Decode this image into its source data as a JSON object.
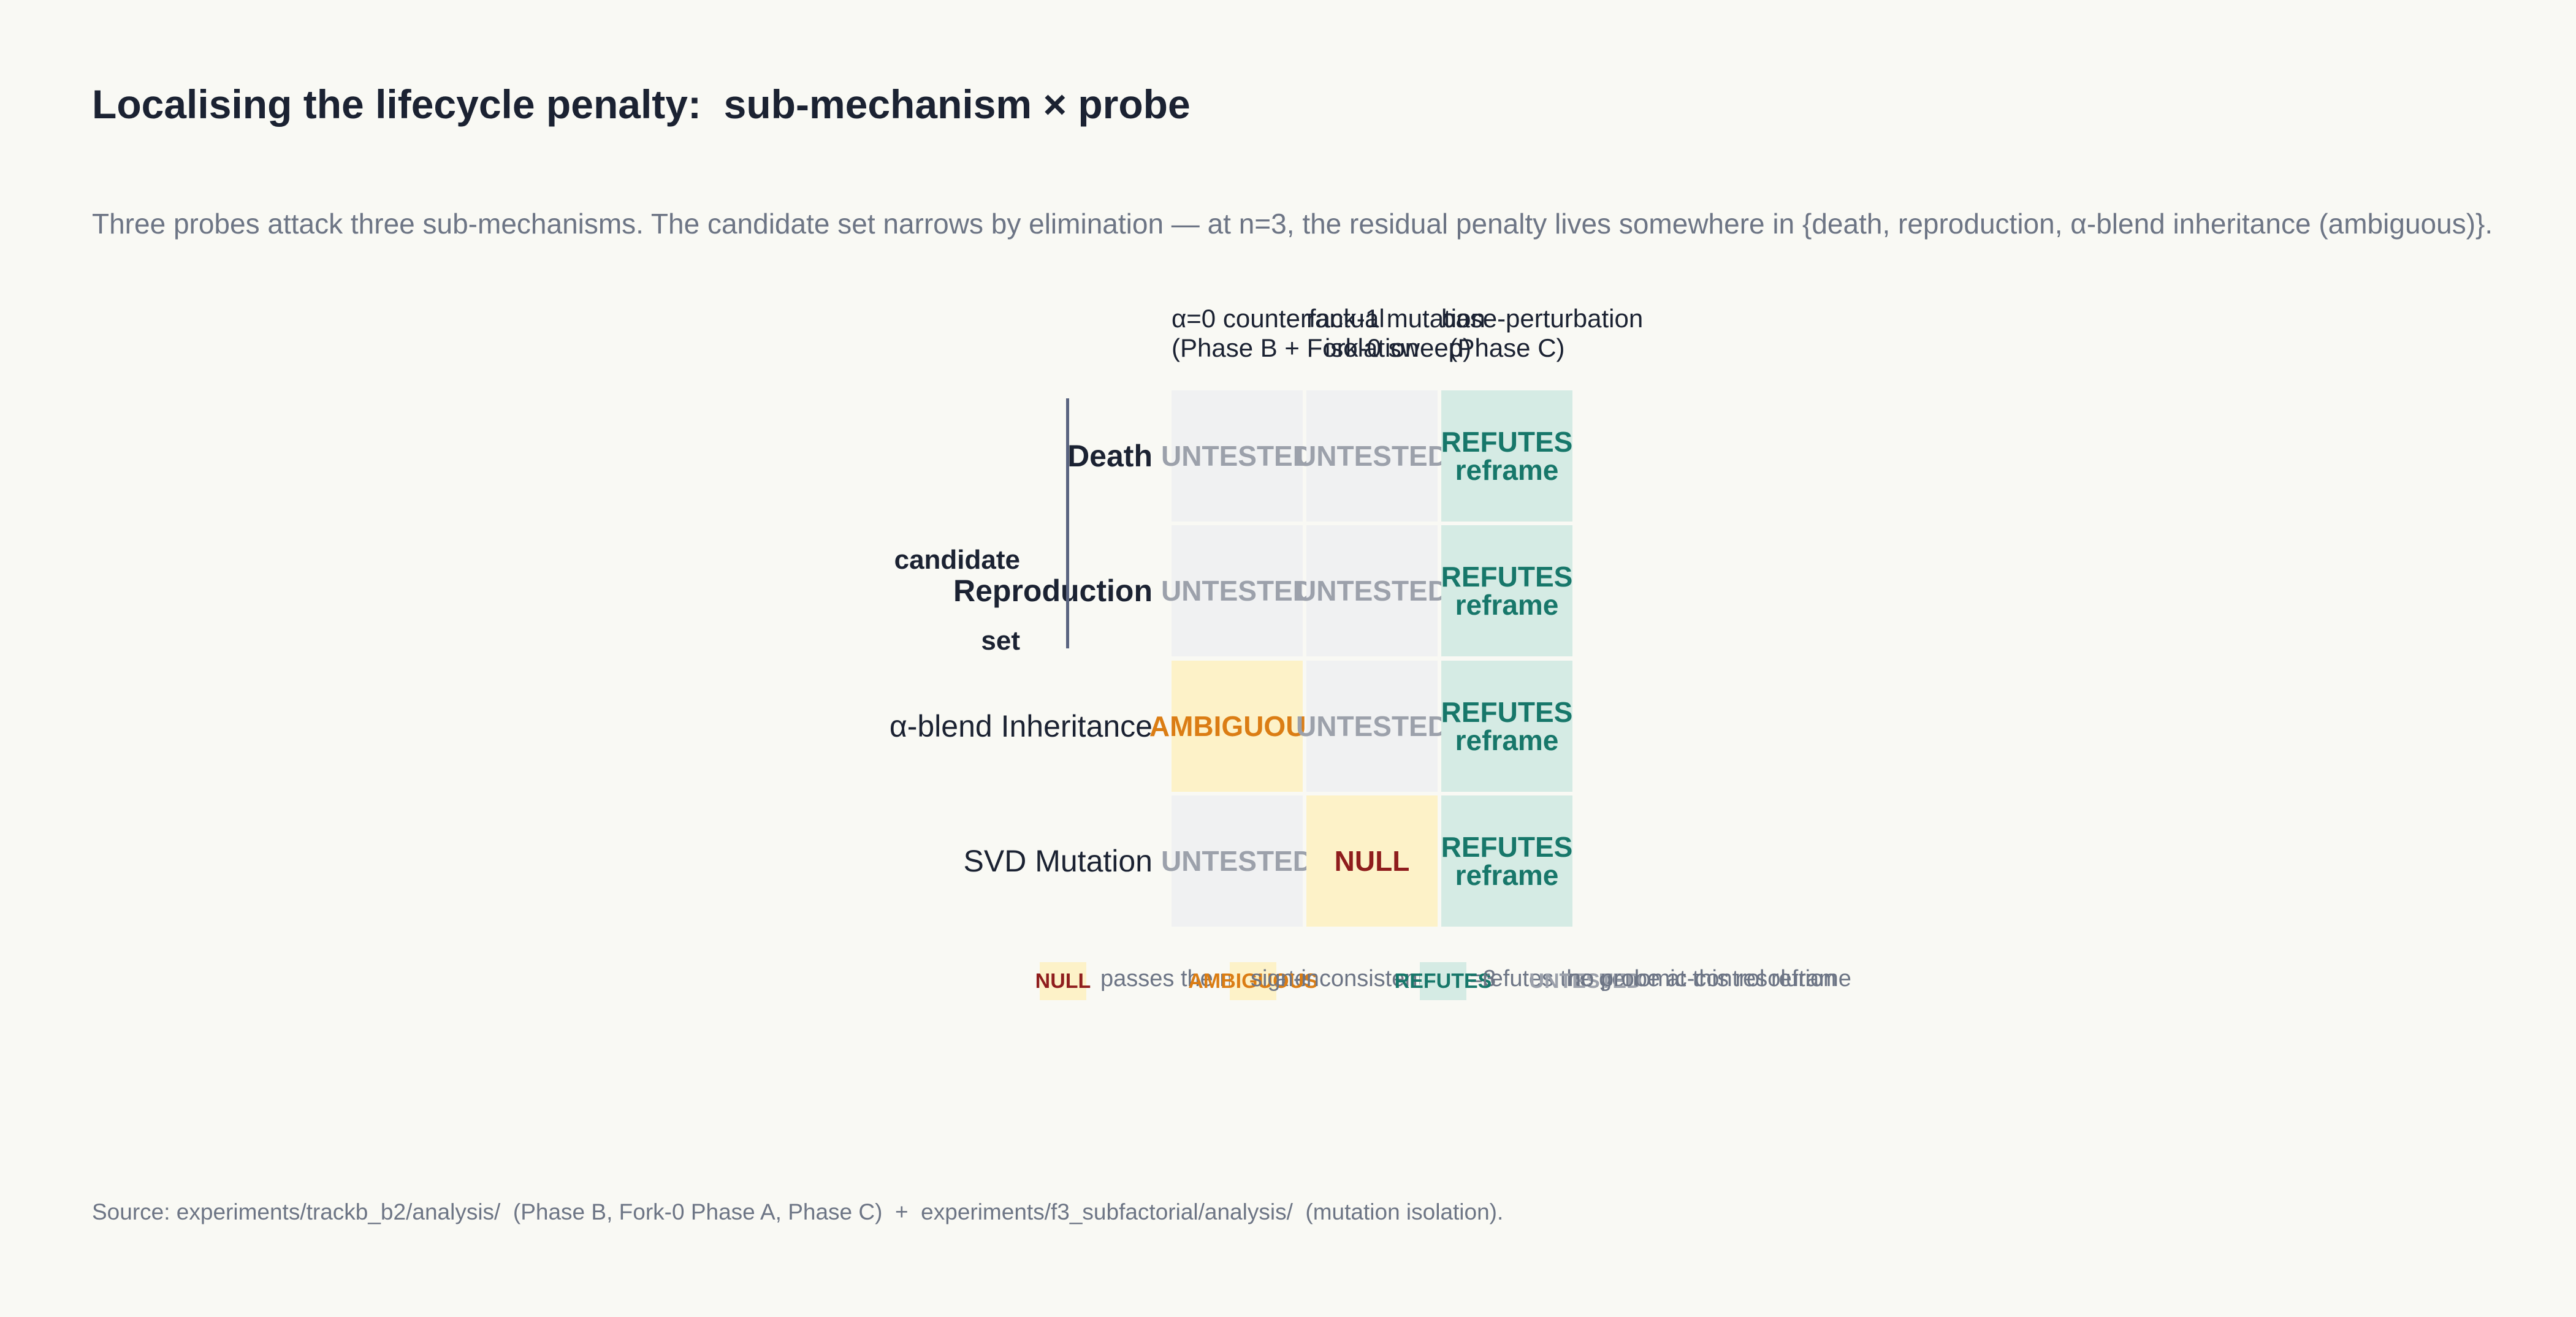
{
  "title": "Localising the lifecycle penalty:  sub-mechanism × probe",
  "subtitle": "Three probes attack three sub-mechanisms. The candidate set narrows by elimination — at n=3, the residual penalty lives somewhere in {death, reproduction, α-blend inheritance (ambiguous)}.",
  "source": "Source: experiments/trackb_b2/analysis/  (Phase B, Fork-0 Phase A, Phase C)  +  experiments/f3_subfactorial/analysis/  (mutation isolation).",
  "colors": {
    "untested_bg": "#f0f1f2",
    "untested_fg": "#9ca1ab",
    "refutes_bg": "#d5ebe4",
    "refutes_fg": "#17776a",
    "ambiguous_bg": "#fdf2c8",
    "ambiguous_fg": "#db7d14",
    "null_bg": "#fdf2c8",
    "null_fg": "#8f1d1d",
    "bracket": "#5a6480"
  },
  "chart_data": {
    "type": "heatmap",
    "title": "Localising the lifecycle penalty:  sub-mechanism × probe",
    "columns": [
      {
        "line1": "α=0 counterfactual",
        "line2": "(Phase B + Fork-0 sweep)"
      },
      {
        "line1": "rank-1 mutation",
        "line2": "isolation"
      },
      {
        "line1": "base-perturbation",
        "line2": "(Phase C)"
      }
    ],
    "group": {
      "label_line1": "candidate",
      "label_line2": "set",
      "rows": [
        "Death",
        "Reproduction"
      ]
    },
    "rows": [
      {
        "label": "Death",
        "bold": true,
        "cells": [
          {
            "status": "untested",
            "text": "UNTESTED"
          },
          {
            "status": "untested",
            "text": "UNTESTED"
          },
          {
            "status": "refutes",
            "text": "REFUTES\nreframe"
          }
        ]
      },
      {
        "label": "Reproduction",
        "bold": true,
        "cells": [
          {
            "status": "untested",
            "text": "UNTESTED"
          },
          {
            "status": "untested",
            "text": "UNTESTED"
          },
          {
            "status": "refutes",
            "text": "REFUTES\nreframe"
          }
        ]
      },
      {
        "label": "α-blend Inheritance",
        "bold": false,
        "cells": [
          {
            "status": "ambiguous",
            "text": "AMBIGUOUS"
          },
          {
            "status": "untested",
            "text": "UNTESTED"
          },
          {
            "status": "refutes",
            "text": "REFUTES\nreframe"
          }
        ]
      },
      {
        "label": "SVD Mutation",
        "bold": false,
        "cells": [
          {
            "status": "untested",
            "text": "UNTESTED"
          },
          {
            "status": "null",
            "text": "NULL"
          },
          {
            "status": "refutes",
            "text": "REFUTES\nreframe"
          }
        ]
      }
    ],
    "legend": [
      {
        "status": "null",
        "label": "NULL",
        "text": "passes the null gate"
      },
      {
        "status": "ambiguous",
        "label": "AMBIGUOUS",
        "text": "sign-inconsistent at n=3"
      },
      {
        "status": "refutes",
        "label": "REFUTES",
        "text": "refutes the genomic-control reframe"
      },
      {
        "status": "untested",
        "label": "UNTESTED",
        "text": "no probe at this resolution"
      }
    ]
  }
}
